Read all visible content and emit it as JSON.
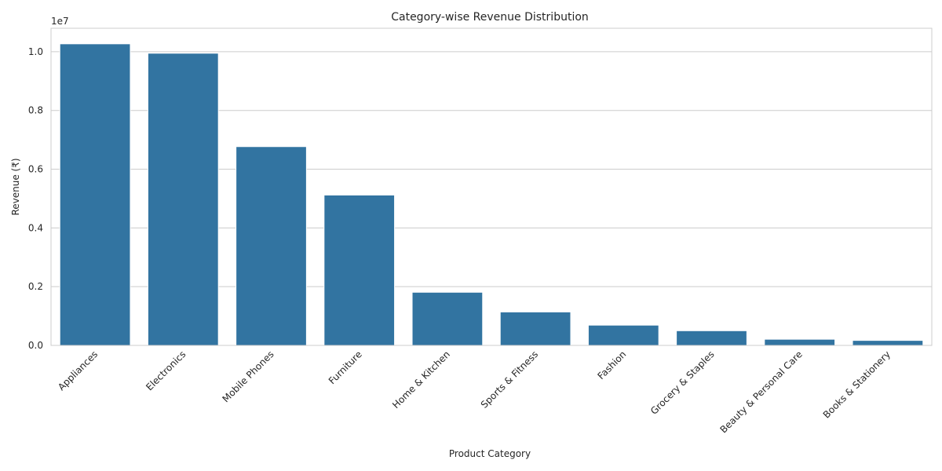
{
  "chart_data": {
    "type": "bar",
    "title": "Category-wise Revenue Distribution",
    "xlabel": "Product Category",
    "ylabel": "Revenue (₹)",
    "y_offset_text": "1e7",
    "categories": [
      "Appliances",
      "Electronics",
      "Mobile Phones",
      "Furniture",
      "Home & Kitchen",
      "Sports & Fitness",
      "Fashion",
      "Grocery & Staples",
      "Beauty & Personal Care",
      "Books & Stationery"
    ],
    "values": [
      10270000,
      9950000,
      6770000,
      5120000,
      1810000,
      1140000,
      690000,
      500000,
      210000,
      170000
    ],
    "ylim": [
      0,
      10800000
    ],
    "yticks": [
      0,
      2000000,
      4000000,
      6000000,
      8000000,
      10000000
    ],
    "ytick_labels": [
      "0.0",
      "0.2",
      "0.4",
      "0.6",
      "0.8",
      "1.0"
    ],
    "grid": true,
    "bar_color": "#3274a1"
  }
}
